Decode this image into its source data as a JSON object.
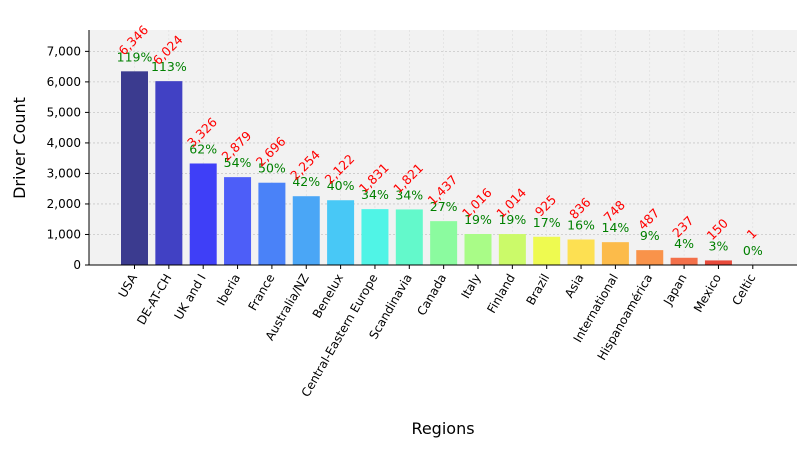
{
  "chart_data": {
    "type": "bar",
    "title": "",
    "xlabel": "Regions",
    "ylabel": "Driver Count",
    "ylim": [
      0,
      7700
    ],
    "yticks": [
      0,
      1000,
      2000,
      3000,
      4000,
      5000,
      6000,
      7000
    ],
    "ytick_labels": [
      "0",
      "1,000",
      "2,000",
      "3,000",
      "4,000",
      "5,000",
      "6,000",
      "7,000"
    ],
    "grid": true,
    "categories": [
      "USA",
      "DE-AT-CH",
      "UK and I",
      "Iberia",
      "France",
      "Australia/NZ",
      "Benelux",
      "Central-Eastern Europe",
      "Scandinavia",
      "Canada",
      "Italy",
      "Finland",
      "Brazil",
      "Asia",
      "International",
      "Hispanoamérica",
      "Japan",
      "Mexico",
      "Celtic"
    ],
    "values": [
      6346,
      6024,
      3326,
      2879,
      2696,
      2254,
      2122,
      1831,
      1821,
      1437,
      1016,
      1014,
      925,
      836,
      748,
      487,
      237,
      150,
      1
    ],
    "value_labels": [
      "6,346",
      "6,024",
      "3,326",
      "2,879",
      "2,696",
      "2,254",
      "2,122",
      "1,831",
      "1,821",
      "1,437",
      "1,016",
      "1,014",
      "925",
      "836",
      "748",
      "487",
      "237",
      "150",
      "1"
    ],
    "percent_labels": [
      "119%",
      "113%",
      "62%",
      "54%",
      "50%",
      "42%",
      "40%",
      "34%",
      "34%",
      "27%",
      "19%",
      "19%",
      "17%",
      "16%",
      "14%",
      "9%",
      "4%",
      "3%",
      "0%"
    ],
    "colors": [
      "#3b3b8f",
      "#4141c4",
      "#3f3ff7",
      "#4d5ef8",
      "#4a82f8",
      "#4aa6f6",
      "#48c8f6",
      "#50f4e6",
      "#63f9cb",
      "#8bfb9f",
      "#a9fc87",
      "#cbfa69",
      "#eefa50",
      "#fde052",
      "#fcbb4a",
      "#f9934a",
      "#f3704a",
      "#e84a3b",
      "#e0402c"
    ],
    "value_label_color": "#ff0000",
    "percent_label_color": "#008000",
    "plot_background": "#f2f2f2"
  }
}
